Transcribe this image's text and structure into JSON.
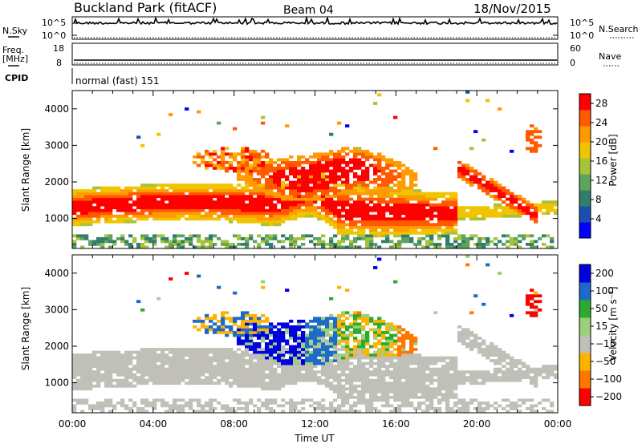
{
  "header": {
    "station": "Buckland Park (fitACF)",
    "beam": "Beam 04",
    "date": "18/Nov/2015"
  },
  "noise_panel": {
    "left_label": "N.Sky",
    "right_label": "N.Search",
    "left_ticks": [
      "10^5",
      "10^0"
    ],
    "right_ticks": [
      "10^5",
      "10^0"
    ]
  },
  "freq_panel": {
    "left_label_1": "Freq.",
    "left_label_2": "[MHz]",
    "left_ticks": [
      "18",
      "8"
    ],
    "right_label": "Nave",
    "right_ticks": [
      "60",
      "0"
    ]
  },
  "cpid_panel": {
    "label": "CPID",
    "mode": "normal (fast) 151"
  },
  "colors": {
    "power": [
      "#0000ff",
      "#1a4fb0",
      "#2f7f6b",
      "#5fa45e",
      "#a8c23a",
      "#f0c400",
      "#ff9a00",
      "#ff5a00",
      "#ff0000"
    ],
    "velocity": [
      "#ff0000",
      "#ff7700",
      "#ffb300",
      "#c0c0b8",
      "#9bd07a",
      "#2eaa2e",
      "#1d6ac8",
      "#0000e0"
    ]
  },
  "chart_data": [
    {
      "type": "heatmap",
      "name": "power",
      "ylabel": "Slant Range [km]",
      "yticks": [
        "1000",
        "2000",
        "3000",
        "4000"
      ],
      "ylim": [
        180,
        4500
      ],
      "xlim": [
        "00:00",
        "24:00"
      ],
      "colorbar_label": "Power [dB]",
      "colorbar_ticks": [
        "4",
        "8",
        "12",
        "16",
        "20",
        "24",
        "28"
      ],
      "colorbar_range": [
        0,
        30
      ]
    },
    {
      "type": "heatmap",
      "name": "velocity",
      "ylabel": "Slant Range [km]",
      "yticks": [
        "1000",
        "2000",
        "3000",
        "4000"
      ],
      "ylim": [
        180,
        4500
      ],
      "xlim": [
        "00:00",
        "24:00"
      ],
      "xlabel": "Time UT",
      "xticks": [
        "00:00",
        "04:00",
        "08:00",
        "12:00",
        "16:00",
        "20:00",
        "00:00"
      ],
      "colorbar_label": "Velocity [m s⁻¹]",
      "colorbar_ticks": [
        "200",
        "100",
        "50",
        "15",
        "−15",
        "−50",
        "−100",
        "−200"
      ]
    }
  ]
}
